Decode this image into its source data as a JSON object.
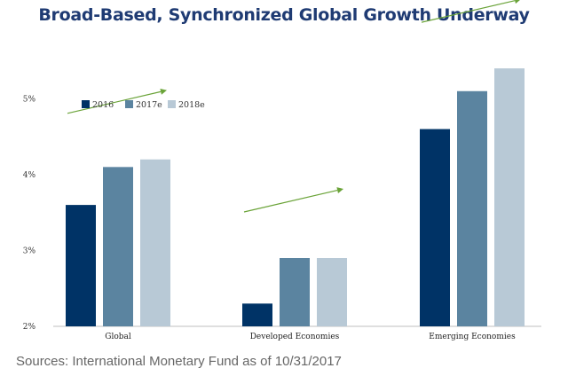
{
  "title": "Broad-Based, Synchronized Global Growth Underway",
  "source": "Sources: International Monetary Fund as of 10/31/2017",
  "chart_data": {
    "type": "bar",
    "title": "Broad-Based, Synchronized Global Growth Underway",
    "xlabel": "",
    "ylabel": "",
    "categories": [
      "Global",
      "Developed Economies",
      "Emerging Economies"
    ],
    "series": [
      {
        "name": "2016",
        "values": [
          3.6,
          2.3,
          4.6
        ],
        "color": "#003366"
      },
      {
        "name": "2017e",
        "values": [
          4.1,
          2.9,
          5.1
        ],
        "color": "#5b84a0"
      },
      {
        "name": "2018e",
        "values": [
          4.2,
          2.9,
          5.4
        ],
        "color": "#b8c9d6"
      }
    ],
    "ylim": [
      2,
      5.6
    ],
    "yticks": [
      2,
      3,
      4,
      5
    ],
    "ytick_labels": [
      "2%",
      "3%",
      "4%",
      "5%"
    ],
    "grid": false,
    "legend_position": "top-left",
    "trend_arrow_color": "#6aa338"
  }
}
